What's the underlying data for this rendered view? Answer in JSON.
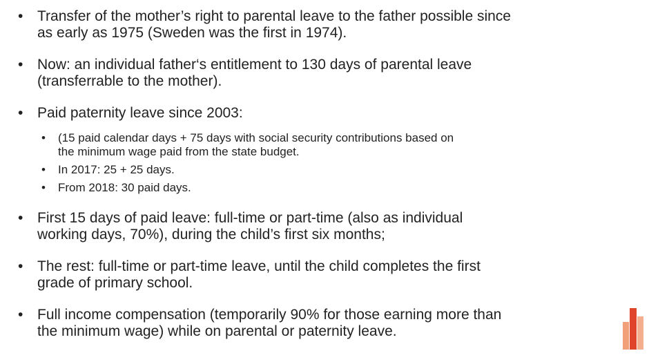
{
  "slide": {
    "bullets": [
      {
        "lines": [
          "Transfer of the mother’s right to parental leave to the father possible since",
          "as early as 1975 (Sweden was the first in 1974)."
        ]
      },
      {
        "lines": [
          "Now: an individual father‘s entitlement to 130 days of parental leave",
          "(transferrable to the mother)."
        ]
      },
      {
        "lines": [
          "Paid paternity leave since 2003:"
        ],
        "sub": [
          {
            "lines": [
              "(15 paid calendar days + 75 days with social security contributions based on",
              "the minimum wage paid from the state budget."
            ]
          },
          {
            "lines": [
              "In 2017: 25 + 25 days."
            ]
          },
          {
            "lines": [
              "From 2018: 30 paid days."
            ]
          }
        ]
      },
      {
        "lines": [
          "First 15 days of paid leave: full-time or part-time (also as individual",
          "working days, 70%), during the child’s first six months;"
        ]
      },
      {
        "lines": [
          "The rest: full-time or part-time leave, until the child completes the first",
          "grade of primary school."
        ]
      },
      {
        "lines": [
          "Full income compensation (temporarily 90% for those earning more than",
          "the minimum wage) while on parental or paternity leave."
        ]
      }
    ]
  }
}
